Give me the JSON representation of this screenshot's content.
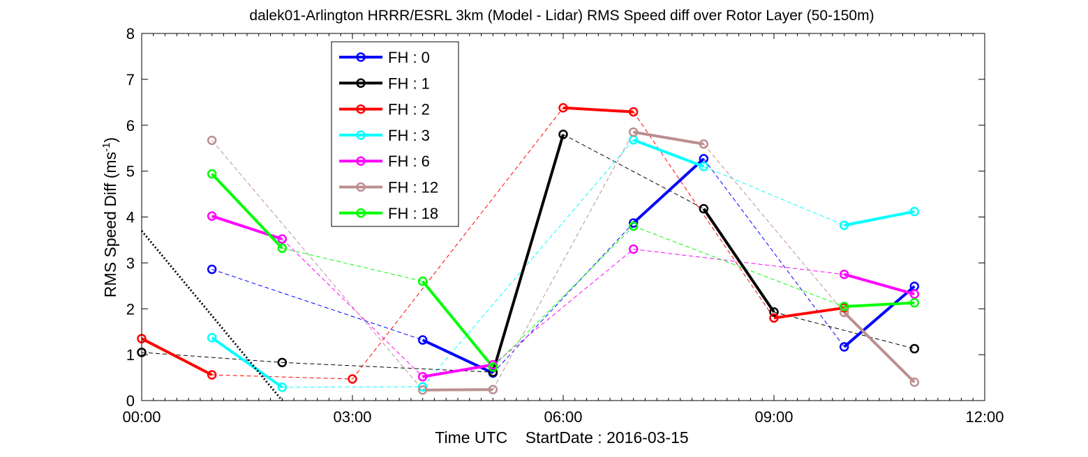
{
  "chart_data": {
    "type": "line",
    "title": "dalek01-Arlington HRRR/ESRL 3km (Model - Lidar) RMS Speed diff over Rotor Layer (50-150m)",
    "xlabel": "Time UTC    StartDate : 2016-03-15",
    "ylabel_main": "RMS Speed Diff (ms",
    "ylabel_sup": "-1",
    "ylabel_tail": ")",
    "xlim": [
      0,
      12
    ],
    "ylim": [
      0,
      8
    ],
    "x_ticks": [
      0,
      3,
      6,
      9,
      12
    ],
    "x_tick_labels": [
      "00:00",
      "03:00",
      "06:00",
      "09:00",
      "12:00"
    ],
    "y_ticks": [
      0,
      1,
      2,
      3,
      4,
      5,
      6,
      7,
      8
    ],
    "y_tick_labels": [
      "0",
      "1",
      "2",
      "3",
      "4",
      "5",
      "6",
      "7",
      "8"
    ],
    "grid": false,
    "legend_position": "top-left",
    "series": [
      {
        "name": "FH : 0",
        "color": "#0000ff",
        "points": [
          [
            1,
            2.86
          ],
          [
            4,
            1.32
          ],
          [
            5,
            0.6
          ],
          [
            7,
            3.87
          ],
          [
            8,
            5.27
          ],
          [
            10,
            1.17
          ],
          [
            11,
            2.49
          ]
        ]
      },
      {
        "name": "FH : 1",
        "color": "#000000",
        "points": [
          [
            0,
            1.05
          ],
          [
            2,
            0.83
          ],
          [
            5,
            0.62
          ],
          [
            6,
            5.8
          ],
          [
            8,
            4.18
          ],
          [
            9,
            1.93
          ],
          [
            11,
            1.13
          ]
        ]
      },
      {
        "name": "FH : 2",
        "color": "#ff0000",
        "points": [
          [
            0,
            1.35
          ],
          [
            1,
            0.56
          ],
          [
            3,
            0.47
          ],
          [
            6,
            6.38
          ],
          [
            7,
            6.29
          ],
          [
            9,
            1.8
          ],
          [
            10,
            2.02
          ]
        ]
      },
      {
        "name": "FH : 3",
        "color": "#00ffff",
        "points": [
          [
            1,
            1.37
          ],
          [
            2,
            0.29
          ],
          [
            4,
            0.3
          ],
          [
            7,
            5.68
          ],
          [
            8,
            5.1
          ],
          [
            10,
            3.82
          ],
          [
            11,
            4.12
          ]
        ]
      },
      {
        "name": "FH : 6",
        "color": "#ff00ff",
        "points": [
          [
            1,
            4.02
          ],
          [
            2,
            3.52
          ],
          [
            4,
            0.52
          ],
          [
            5,
            0.78
          ],
          [
            7,
            3.3
          ],
          [
            10,
            2.75
          ],
          [
            11,
            2.32
          ]
        ]
      },
      {
        "name": "FH : 12",
        "color": "#bc8f8f",
        "points": [
          [
            1,
            5.67
          ],
          [
            4,
            0.23
          ],
          [
            5,
            0.24
          ],
          [
            7,
            5.85
          ],
          [
            8,
            5.59
          ],
          [
            10,
            1.92
          ],
          [
            11,
            0.4
          ]
        ]
      },
      {
        "name": "FH : 18",
        "color": "#00ff00",
        "points": [
          [
            1,
            4.94
          ],
          [
            2,
            3.32
          ],
          [
            4,
            2.6
          ],
          [
            5,
            0.73
          ],
          [
            7,
            3.8
          ],
          [
            10,
            2.05
          ],
          [
            11,
            2.13
          ]
        ]
      }
    ],
    "reference_line": {
      "color": "#000000",
      "style": "dotted",
      "points": [
        [
          0,
          3.7
        ],
        [
          2,
          0.0
        ]
      ]
    }
  }
}
